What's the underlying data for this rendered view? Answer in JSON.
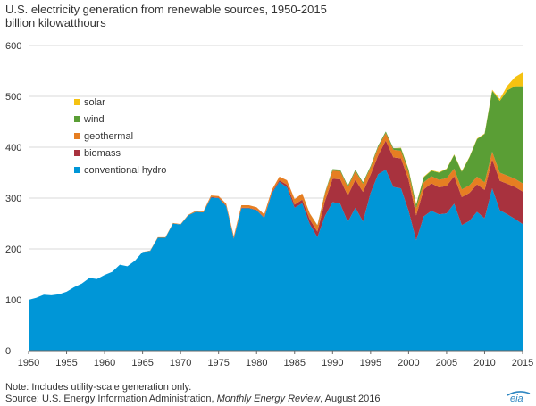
{
  "chart_data": {
    "type": "area",
    "stacked": true,
    "title": "U.S. electricity generation from renewable sources, 1950-2015",
    "subtitle": "billion kilowatthours",
    "xlabel": "",
    "ylabel": "",
    "xlim": [
      1950,
      2015
    ],
    "ylim": [
      0,
      600
    ],
    "x_ticks": [
      1950,
      1955,
      1960,
      1965,
      1970,
      1975,
      1980,
      1985,
      1990,
      1995,
      2000,
      2005,
      2010,
      2015
    ],
    "y_ticks": [
      0,
      100,
      200,
      300,
      400,
      500,
      600
    ],
    "grid": "horizontal",
    "legend_position": "upper-left",
    "legend_order": [
      "solar",
      "wind",
      "geothermal",
      "biomass",
      "conventional hydro"
    ],
    "x": [
      1950,
      1951,
      1952,
      1953,
      1954,
      1955,
      1956,
      1957,
      1958,
      1959,
      1960,
      1961,
      1962,
      1963,
      1964,
      1965,
      1966,
      1967,
      1968,
      1969,
      1970,
      1971,
      1972,
      1973,
      1974,
      1975,
      1976,
      1977,
      1978,
      1979,
      1980,
      1981,
      1982,
      1983,
      1984,
      1985,
      1986,
      1987,
      1988,
      1989,
      1990,
      1991,
      1992,
      1993,
      1994,
      1995,
      1996,
      1997,
      1998,
      1999,
      2000,
      2001,
      2002,
      2003,
      2004,
      2005,
      2006,
      2007,
      2008,
      2009,
      2010,
      2011,
      2012,
      2013,
      2014,
      2015
    ],
    "series": [
      {
        "name": "conventional hydro",
        "color": "#0096d7",
        "values": [
          100,
          104,
          110,
          109,
          111,
          116,
          125,
          132,
          143,
          141,
          149,
          155,
          169,
          166,
          177,
          194,
          196,
          222,
          222,
          250,
          248,
          266,
          273,
          272,
          301,
          300,
          284,
          220,
          280,
          280,
          276,
          261,
          309,
          332,
          321,
          281,
          290,
          249,
          223,
          265,
          292,
          289,
          253,
          281,
          254,
          310,
          347,
          356,
          322,
          319,
          275,
          217,
          264,
          275,
          268,
          270,
          289,
          247,
          255,
          273,
          260,
          319,
          276,
          268,
          259,
          249
        ]
      },
      {
        "name": "biomass",
        "color": "#a8323e",
        "values": [
          0,
          0,
          0,
          0,
          0,
          0,
          0,
          0,
          0,
          0,
          0,
          0,
          0,
          0,
          0,
          0,
          0,
          0,
          0,
          0,
          0,
          0,
          0,
          0,
          1,
          1,
          1,
          1,
          1,
          1,
          1,
          1,
          2,
          3,
          5,
          6,
          7,
          9,
          11,
          29,
          46,
          48,
          52,
          55,
          58,
          36,
          37,
          57,
          58,
          59,
          61,
          49,
          53,
          54,
          53,
          54,
          54,
          55,
          55,
          54,
          56,
          57,
          58,
          60,
          63,
          64
        ]
      },
      {
        "name": "geothermal",
        "color": "#e67e22",
        "values": [
          0,
          0,
          0,
          0,
          0,
          0,
          0,
          0,
          0,
          0,
          0,
          0,
          0,
          0,
          0,
          0,
          1,
          1,
          1,
          1,
          1,
          1,
          2,
          2,
          3,
          3,
          4,
          4,
          5,
          5,
          5,
          6,
          5,
          7,
          9,
          11,
          12,
          12,
          12,
          15,
          16,
          16,
          16,
          17,
          16,
          14,
          16,
          15,
          15,
          15,
          14,
          14,
          14,
          14,
          15,
          15,
          15,
          15,
          15,
          15,
          15,
          15,
          16,
          16,
          16,
          16
        ]
      },
      {
        "name": "wind",
        "color": "#5a9e35",
        "values": [
          0,
          0,
          0,
          0,
          0,
          0,
          0,
          0,
          0,
          0,
          0,
          0,
          0,
          0,
          0,
          0,
          0,
          0,
          0,
          0,
          0,
          0,
          0,
          0,
          0,
          0,
          0,
          0,
          0,
          0,
          0,
          0,
          0,
          0,
          0,
          0,
          0,
          0,
          1,
          2,
          3,
          3,
          3,
          3,
          3,
          3,
          3,
          3,
          3,
          5,
          6,
          7,
          10,
          11,
          14,
          18,
          27,
          35,
          55,
          74,
          95,
          120,
          141,
          168,
          182,
          191
        ]
      },
      {
        "name": "solar",
        "color": "#f5c211",
        "values": [
          0,
          0,
          0,
          0,
          0,
          0,
          0,
          0,
          0,
          0,
          0,
          0,
          0,
          0,
          0,
          0,
          0,
          0,
          0,
          0,
          0,
          0,
          0,
          0,
          0,
          0,
          0,
          0,
          0,
          0,
          0,
          0,
          0,
          0,
          0,
          0,
          0,
          0,
          0,
          0,
          0,
          0,
          0,
          0,
          0,
          0,
          0,
          0,
          0,
          1,
          1,
          1,
          1,
          1,
          1,
          1,
          1,
          1,
          1,
          1,
          1,
          2,
          4,
          9,
          18,
          27
        ]
      }
    ]
  },
  "footer": {
    "note": "Note: Includes utility-scale generation only.",
    "source_prefix": "Source: U.S. Energy Information Administration, ",
    "source_publication": "Monthly Energy Review",
    "source_suffix": ", August 2016"
  },
  "logo": {
    "text": "eia",
    "color": "#2e86c1"
  }
}
